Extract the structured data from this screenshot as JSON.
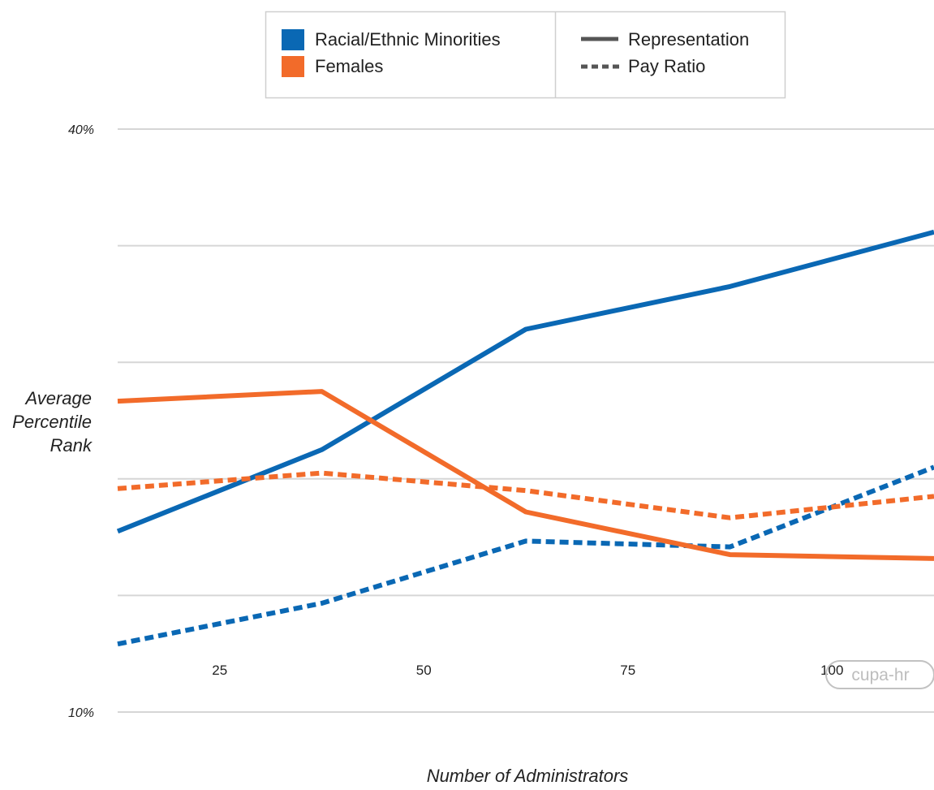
{
  "chart_data": {
    "type": "line",
    "title": "",
    "xlabel": "Number of Administrators",
    "ylabel_lines": [
      "Average",
      "Percentile",
      "Rank"
    ],
    "x": [
      12.5,
      37.5,
      62.5,
      87.5,
      112.5
    ],
    "xticks": [
      25,
      50,
      75,
      100
    ],
    "xlim": [
      12.5,
      112.5
    ],
    "ylim": [
      10,
      40
    ],
    "yticks": [
      10,
      16,
      22,
      28,
      34,
      40
    ],
    "ytick_labels": [
      "10%",
      "",
      "",
      "",
      "",
      "40%"
    ],
    "grid": true,
    "legend_position": "top-center",
    "legend": {
      "groups": [
        "Racial/Ethnic Minorities",
        "Females"
      ],
      "styles": [
        "Representation",
        "Pay Ratio"
      ]
    },
    "series": [
      {
        "group": "Racial/Ethnic Minorities",
        "style": "Representation",
        "color": "#0a68b4",
        "values": [
          19.3,
          23.5,
          29.7,
          31.9,
          34.7
        ]
      },
      {
        "group": "Racial/Ethnic Minorities",
        "style": "Pay Ratio",
        "color": "#0a68b4",
        "values": [
          13.5,
          15.6,
          18.8,
          18.5,
          22.6
        ]
      },
      {
        "group": "Females",
        "style": "Representation",
        "color": "#f26b2a",
        "values": [
          26.0,
          26.5,
          20.3,
          18.1,
          17.9
        ]
      },
      {
        "group": "Females",
        "style": "Pay Ratio",
        "color": "#f26b2a",
        "values": [
          21.5,
          22.3,
          21.4,
          20.0,
          21.1
        ]
      }
    ],
    "watermark": "cupa-hr"
  }
}
